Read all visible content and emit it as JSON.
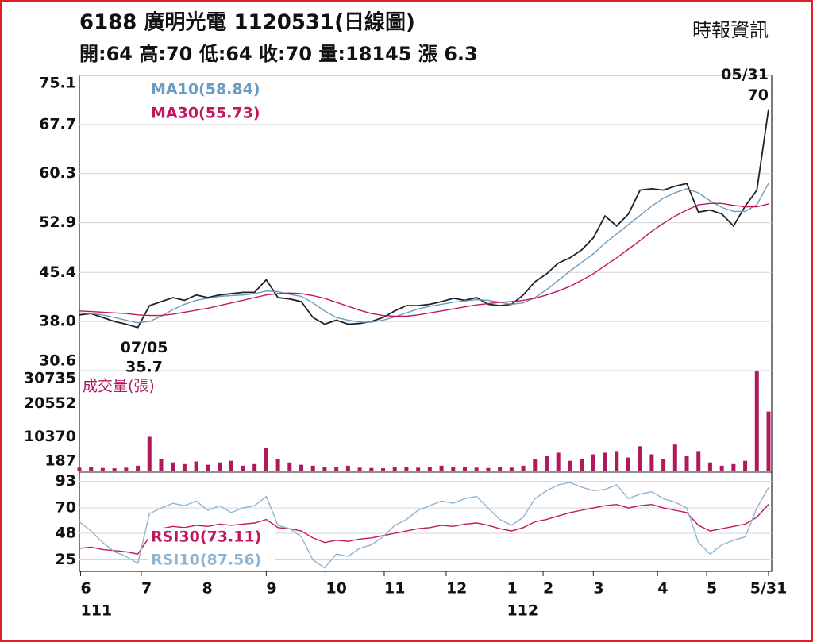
{
  "chart_data": [
    {
      "type": "line",
      "title": "6188  廣明光電 1120531(日線圖)",
      "subtitle": "開:64 高:70 低:64 收:70 量:18145 漲 6.3",
      "source": "時報資訊",
      "ylim": [
        30.6,
        75.1
      ],
      "yticks": [
        75.1,
        67.7,
        60.3,
        52.9,
        45.4,
        {
          "value": 38,
          "label": "38.0"
        },
        30.6
      ],
      "grid": true,
      "legend": "upper left",
      "series": [
        {
          "color": "#222222",
          "values": [
            39.0,
            39.2,
            38.6,
            38.0,
            37.6,
            37.1,
            40.4,
            41.0,
            41.6,
            41.2,
            42.0,
            41.6,
            42.0,
            42.2,
            42.4,
            42.4,
            44.3,
            41.6,
            41.4,
            41.0,
            38.6,
            37.6,
            38.2,
            37.6,
            37.7,
            38.0,
            38.6,
            39.6,
            40.4,
            40.4,
            40.6,
            41.0,
            41.5,
            41.2,
            41.6,
            40.6,
            40.4,
            40.6,
            42.0,
            44.0,
            45.2,
            46.8,
            47.6,
            48.8,
            50.6,
            53.9,
            52.4,
            54.2,
            57.8,
            58.0,
            57.8,
            58.4,
            58.8,
            54.5,
            54.8,
            54.2,
            52.4,
            55.4,
            57.8,
            70
          ]
        },
        {
          "name": "MA10(58.84)",
          "color": "#6a9cc0",
          "values": [
            39.3,
            39.2,
            39.0,
            38.6,
            38.2,
            37.8,
            38.0,
            38.8,
            39.8,
            40.6,
            41.2,
            41.5,
            41.8,
            41.9,
            42.0,
            42.2,
            42.6,
            42.5,
            42.1,
            41.8,
            40.8,
            39.6,
            38.6,
            38.2,
            37.9,
            37.9,
            38.2,
            38.7,
            39.3,
            39.9,
            40.3,
            40.6,
            40.9,
            41.1,
            41.3,
            41.2,
            40.9,
            40.6,
            40.8,
            41.6,
            42.8,
            44.2,
            45.6,
            46.9,
            48.2,
            49.8,
            51.2,
            52.6,
            54.0,
            55.4,
            56.6,
            57.4,
            58.0,
            57.4,
            56.2,
            55.2,
            54.6,
            54.6,
            55.6,
            58.84
          ]
        },
        {
          "name": "MA30(55.73)",
          "color": "#c0185e",
          "values": [
            39.6,
            39.5,
            39.4,
            39.3,
            39.2,
            39.0,
            38.9,
            38.9,
            39.1,
            39.4,
            39.7,
            40.0,
            40.4,
            40.8,
            41.2,
            41.6,
            42.0,
            42.2,
            42.3,
            42.2,
            41.9,
            41.5,
            40.9,
            40.3,
            39.7,
            39.2,
            38.9,
            38.8,
            38.8,
            39.0,
            39.3,
            39.6,
            39.9,
            40.2,
            40.5,
            40.7,
            40.9,
            41.0,
            41.2,
            41.5,
            42.0,
            42.6,
            43.3,
            44.2,
            45.2,
            46.4,
            47.6,
            48.9,
            50.2,
            51.6,
            52.8,
            53.9,
            54.8,
            55.6,
            55.8,
            55.8,
            55.5,
            55.3,
            55.3,
            55.73
          ]
        }
      ],
      "annotations": [
        {
          "date": "07/05",
          "price": 35.7,
          "at": "low"
        },
        {
          "date": "05/31",
          "price": 70,
          "at": "high"
        }
      ]
    },
    {
      "type": "bar",
      "title": "成交量(張)",
      "ylim": [
        0,
        30735
      ],
      "yticks": [
        30735,
        20552,
        10370,
        187
      ],
      "grid": false,
      "color": "#b0195e",
      "values": [
        900,
        1200,
        800,
        700,
        900,
        1500,
        10370,
        3500,
        2500,
        2000,
        2800,
        1800,
        2500,
        3000,
        1500,
        2000,
        7000,
        3500,
        2500,
        1800,
        1500,
        1200,
        1000,
        1500,
        900,
        800,
        700,
        1200,
        1000,
        900,
        1000,
        1500,
        1200,
        1000,
        900,
        800,
        1000,
        900,
        1500,
        3500,
        4500,
        5500,
        3000,
        3500,
        5000,
        5500,
        6000,
        4000,
        7500,
        5000,
        3500,
        8000,
        4500,
        6000,
        2500,
        1500,
        2000,
        3000,
        30735,
        18145
      ]
    },
    {
      "type": "line",
      "ylim": [
        15,
        101
      ],
      "yticks": [
        93,
        70,
        48,
        25
      ],
      "grid": true,
      "legend": "lower left",
      "series": [
        {
          "name": "RSI30(73.11)",
          "color": "#c0185e",
          "values": [
            35,
            36,
            34,
            33,
            32,
            30,
            45,
            52,
            54,
            53,
            55,
            54,
            56,
            55,
            56,
            57,
            60,
            53,
            52,
            50,
            44,
            40,
            42,
            41,
            43,
            44,
            46,
            48,
            50,
            52,
            53,
            55,
            54,
            56,
            57,
            55,
            52,
            50,
            53,
            58,
            60,
            63,
            66,
            68,
            70,
            72,
            73,
            70,
            72,
            73,
            70,
            68,
            66,
            55,
            50,
            52,
            54,
            56,
            62,
            73.11
          ]
        },
        {
          "name": "RSI10(87.56)",
          "color": "#8fb4d2",
          "values": [
            58,
            50,
            40,
            32,
            28,
            22,
            65,
            70,
            74,
            72,
            76,
            68,
            72,
            66,
            70,
            72,
            80,
            55,
            52,
            45,
            25,
            18,
            30,
            28,
            35,
            38,
            45,
            55,
            60,
            68,
            72,
            76,
            74,
            78,
            80,
            70,
            60,
            55,
            62,
            78,
            85,
            90,
            92,
            88,
            85,
            86,
            90,
            78,
            82,
            84,
            78,
            75,
            70,
            40,
            30,
            38,
            42,
            45,
            70,
            87.56
          ]
        }
      ],
      "xticks": [
        {
          "value": 0.1,
          "label": "6"
        },
        {
          "value": 5.3,
          "label": "7"
        },
        {
          "value": 10.5,
          "label": "8"
        },
        {
          "value": 16,
          "label": "9"
        },
        {
          "value": 21.1,
          "label": "10"
        },
        {
          "value": 26.1,
          "label": "11"
        },
        {
          "value": 31.4,
          "label": "12"
        },
        {
          "value": 36.6,
          "label": "1"
        },
        {
          "value": 39.7,
          "label": "2"
        },
        {
          "value": 44,
          "label": "3"
        },
        {
          "value": 49.5,
          "label": "4"
        },
        {
          "value": 53.7,
          "label": "5"
        },
        {
          "value": 59,
          "label": "5/31"
        }
      ],
      "xyears": [
        {
          "value": 0.1,
          "label": "111"
        },
        {
          "value": 36.6,
          "label": "112"
        }
      ]
    }
  ]
}
